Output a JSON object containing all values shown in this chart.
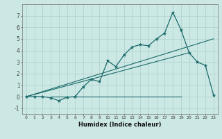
{
  "title": "",
  "xlabel": "Humidex (Indice chaleur)",
  "background_color": "#cce8e4",
  "line_color": "#1a6b6b",
  "grid_color": "#aacfcc",
  "x_data": [
    0,
    1,
    2,
    3,
    4,
    5,
    6,
    7,
    8,
    9,
    10,
    11,
    12,
    13,
    14,
    15,
    16,
    17,
    18,
    19,
    20,
    21,
    22,
    23
  ],
  "y_data": [
    0.0,
    0.0,
    0.0,
    -0.1,
    -0.35,
    -0.05,
    0.0,
    0.85,
    1.5,
    1.3,
    3.1,
    2.6,
    3.6,
    4.3,
    4.5,
    4.4,
    5.0,
    5.5,
    7.3,
    5.8,
    3.8,
    3.0,
    2.7,
    0.15
  ],
  "trend1_x": [
    0,
    23
  ],
  "trend1_y": [
    0.0,
    5.0
  ],
  "trend2_x": [
    0,
    20
  ],
  "trend2_y": [
    0.0,
    3.8
  ],
  "flat_line_x": [
    3,
    19
  ],
  "flat_line_y": 0.0,
  "ylim": [
    -1.5,
    8.0
  ],
  "xlim": [
    -0.5,
    23.5
  ],
  "xticks": [
    0,
    1,
    2,
    3,
    4,
    5,
    6,
    7,
    8,
    9,
    10,
    11,
    12,
    13,
    14,
    15,
    16,
    17,
    18,
    19,
    20,
    21,
    22,
    23
  ],
  "yticks": [
    -1,
    0,
    1,
    2,
    3,
    4,
    5,
    6,
    7
  ],
  "xtick_fontsize": 4.5,
  "ytick_fontsize": 5.5,
  "xlabel_fontsize": 6.0
}
